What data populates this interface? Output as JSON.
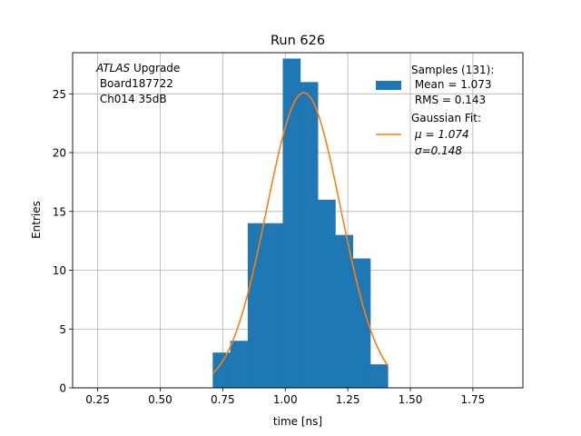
{
  "chart_data": {
    "type": "bar",
    "title": "Run 626",
    "xlabel": "time [ns]",
    "ylabel": "Entries",
    "xlim": [
      0.15,
      1.95
    ],
    "ylim": [
      0,
      28.5
    ],
    "xticks": [
      0.25,
      0.5,
      0.75,
      1.0,
      1.25,
      1.5,
      1.75
    ],
    "xtick_labels": [
      "0.25",
      "0.50",
      "0.75",
      "1.00",
      "1.25",
      "1.50",
      "1.75"
    ],
    "yticks": [
      0,
      5,
      10,
      15,
      20,
      25
    ],
    "ytick_labels": [
      "0",
      "5",
      "10",
      "15",
      "20",
      "25"
    ],
    "grid": true,
    "legend_position": "top-right",
    "annotation": {
      "atlas": "ATLAS",
      "upgrade": " Upgrade",
      "board": " Board187722",
      "channel": " Ch014 35dB"
    },
    "histogram": {
      "name": "Samples (131):",
      "mean_label": " Mean = 1.073",
      "rms_label": " RMS = 0.143",
      "color": "#1f77b4",
      "bin_edges": [
        0.71,
        0.78,
        0.85,
        0.92,
        0.99,
        1.06,
        1.13,
        1.2,
        1.27,
        1.34,
        1.41
      ],
      "counts": [
        3,
        4,
        14,
        14,
        28,
        26,
        16,
        13,
        11,
        2
      ]
    },
    "fit": {
      "name": "Gaussian Fit:",
      "mu_label": "μ = 1.074",
      "sigma_label": "σ=0.148",
      "color": "#ff7f0e",
      "mu": 1.074,
      "sigma": 0.148,
      "amplitude": 25.1,
      "x_range": [
        0.71,
        1.41
      ]
    }
  }
}
